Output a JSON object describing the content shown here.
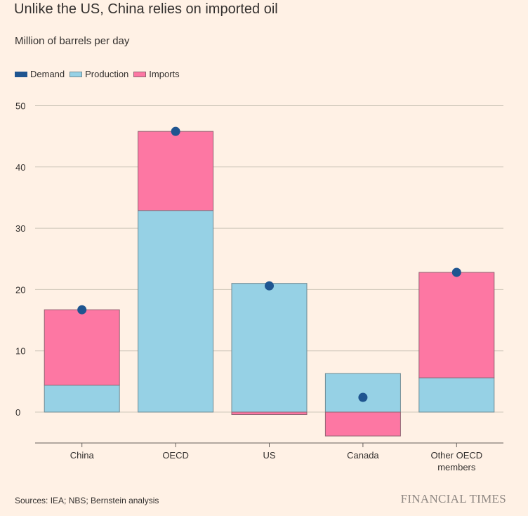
{
  "title": "Unlike the US, China relies on imported oil",
  "subtitle": "Million of barrels per day",
  "legend": [
    {
      "label": "Demand",
      "color": "#1f5590"
    },
    {
      "label": "Production",
      "color": "#96d1e5"
    },
    {
      "label": "Imports",
      "color": "#fd77a3"
    }
  ],
  "source": "Sources: IEA; NBS; Bernstein analysis",
  "brand": "FINANCIAL TIMES",
  "chart_data": {
    "type": "bar",
    "stacked": true,
    "title": "Unlike the US, China relies on imported oil",
    "ylabel": "Million of barrels per day",
    "xlabel": "",
    "ylim": [
      -5,
      50
    ],
    "yticks": [
      0,
      10,
      20,
      30,
      40,
      50
    ],
    "grid": true,
    "legend_position": "top-left",
    "categories": [
      "China",
      "OECD",
      "US",
      "Canada",
      "Other OECD members"
    ],
    "category_lines": [
      [
        "China"
      ],
      [
        "OECD"
      ],
      [
        "US"
      ],
      [
        "Canada"
      ],
      [
        "Other OECD",
        "members"
      ]
    ],
    "series": [
      {
        "name": "Production",
        "type": "bar",
        "color": "#96d1e5",
        "values": [
          4.4,
          32.9,
          21.0,
          6.3,
          5.6
        ]
      },
      {
        "name": "Imports",
        "type": "bar",
        "color": "#fd77a3",
        "values": [
          12.3,
          12.9,
          -0.4,
          -3.9,
          17.2
        ]
      },
      {
        "name": "Demand",
        "type": "dot",
        "color": "#1f5590",
        "values": [
          16.7,
          45.8,
          20.6,
          2.4,
          22.8
        ]
      }
    ]
  }
}
